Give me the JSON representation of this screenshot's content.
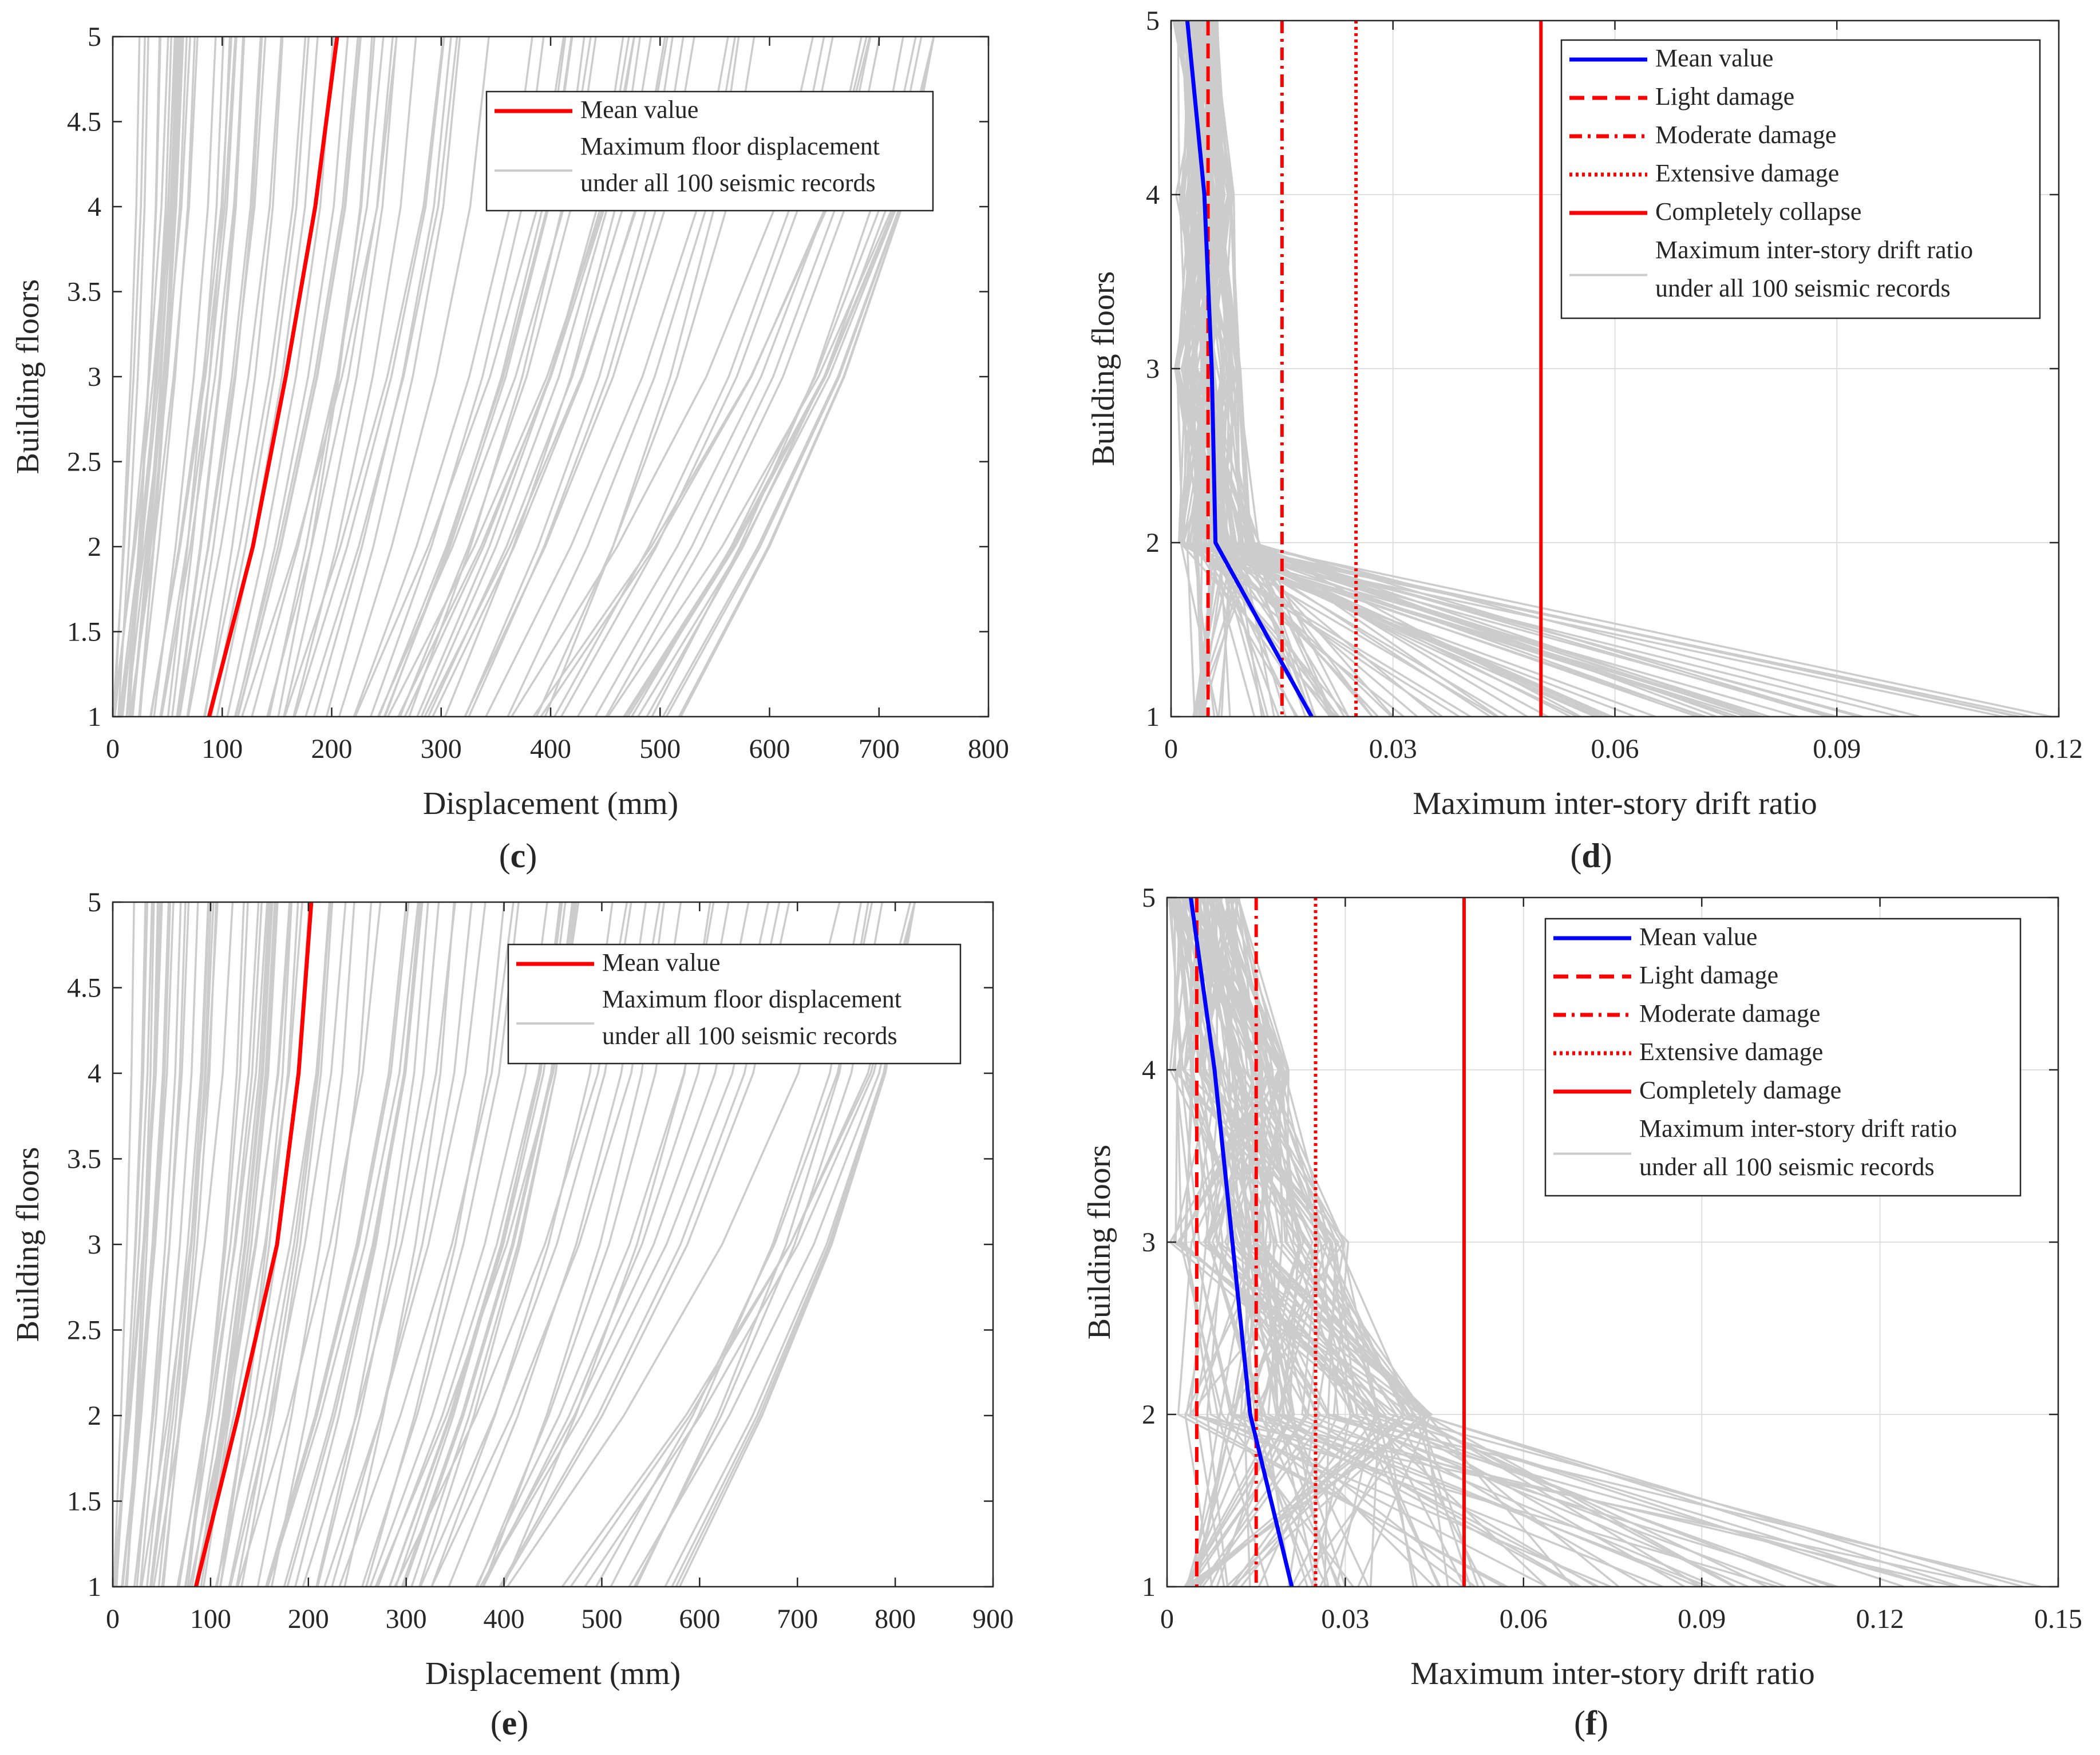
{
  "figure": {
    "colors": {
      "gray": "#cccccc",
      "red": "#ff0000",
      "blue": "#0000ff",
      "axis": "#262626",
      "grid": "#dfdfdf"
    }
  },
  "chart_data": [
    {
      "id": "c",
      "type": "line",
      "panel_label": "(c)",
      "panel_letter": "c",
      "xlabel": "Displacement (mm)",
      "ylabel": "Building floors",
      "xlim": [
        0,
        800
      ],
      "ylim": [
        1,
        5
      ],
      "xticks": [
        0,
        100,
        200,
        300,
        400,
        500,
        600,
        700,
        800
      ],
      "yticks": [
        1,
        1.5,
        2,
        2.5,
        3,
        3.5,
        4,
        4.5,
        5
      ],
      "grid": false,
      "legend_position": "top-right",
      "legend": [
        "Mean value",
        "Maximum floor displacement",
        "under all 100 seismic records"
      ],
      "floors": [
        1,
        2,
        3,
        4,
        5
      ],
      "mean": [
        88,
        128,
        158,
        185,
        205
      ],
      "record_count": 100,
      "record_base_range": [
        0,
        520
      ],
      "record_top_range": [
        0,
        750
      ]
    },
    {
      "id": "d",
      "type": "line",
      "panel_label": "(d)",
      "panel_letter": "d",
      "xlabel": "Maximum inter-story drift ratio",
      "ylabel": "Building floors",
      "xlim": [
        0,
        0.12
      ],
      "ylim": [
        1,
        5
      ],
      "xticks": [
        0,
        0.03,
        0.06,
        0.09,
        0.12
      ],
      "xtick_labels": [
        "0",
        "0.03",
        "0.06",
        "0.09",
        "0.12"
      ],
      "yticks": [
        1,
        2,
        3,
        4,
        5
      ],
      "grid": true,
      "legend_position": "top-right",
      "legend": [
        "Mean value",
        "Light damage",
        "Moderate damage",
        "Extensive damage",
        "Completely collapse",
        "Maximum inter-story drift ratio",
        "under all 100 seismic records"
      ],
      "thresholds": [
        {
          "name": "Light damage",
          "value": 0.005,
          "style": "dashed"
        },
        {
          "name": "Moderate damage",
          "value": 0.015,
          "style": "dashdot"
        },
        {
          "name": "Extensive damage",
          "value": 0.025,
          "style": "dotted"
        },
        {
          "name": "Completely collapse",
          "value": 0.05,
          "style": "solid"
        }
      ],
      "floors": [
        1,
        2,
        3,
        4,
        5
      ],
      "mean": [
        0.019,
        0.006,
        0.0055,
        0.0045,
        0.0022
      ],
      "record_count": 100,
      "record_base_max": 0.12
    },
    {
      "id": "e",
      "type": "line",
      "panel_label": "(e)",
      "panel_letter": "e",
      "xlabel": "Displacement (mm)",
      "ylabel": "Building floors",
      "xlim": [
        0,
        900
      ],
      "ylim": [
        1,
        5
      ],
      "xticks": [
        0,
        100,
        200,
        300,
        400,
        500,
        600,
        700,
        800,
        900
      ],
      "yticks": [
        1,
        1.5,
        2,
        2.5,
        3,
        3.5,
        4,
        4.5,
        5
      ],
      "grid": false,
      "legend_position": "top-right",
      "legend": [
        "Mean value",
        "Maximum floor displacement",
        "under all 100 seismic records"
      ],
      "floors": [
        1,
        2,
        3,
        4,
        5
      ],
      "mean": [
        85,
        128,
        168,
        190,
        203
      ],
      "record_count": 100,
      "record_base_range": [
        0,
        580
      ],
      "record_top_range": [
        0,
        820
      ]
    },
    {
      "id": "f",
      "type": "line",
      "panel_label": "(f)",
      "panel_letter": "f",
      "xlabel": "Maximum inter-story drift ratio",
      "ylabel": "Building floors",
      "xlim": [
        0,
        0.15
      ],
      "ylim": [
        1,
        5
      ],
      "xticks": [
        0,
        0.03,
        0.06,
        0.09,
        0.12,
        0.15
      ],
      "xtick_labels": [
        "0",
        "0.03",
        "0.06",
        "0.09",
        "0.12",
        "0.15"
      ],
      "yticks": [
        1,
        2,
        3,
        4,
        5
      ],
      "grid": true,
      "legend_position": "top-right",
      "legend": [
        "Mean value",
        "Light damage",
        "Moderate damage",
        "Extensive damage",
        "Completely damage",
        "Maximum inter-story drift ratio",
        "under all 100 seismic records"
      ],
      "thresholds": [
        {
          "name": "Light damage",
          "value": 0.005,
          "style": "dashed"
        },
        {
          "name": "Moderate damage",
          "value": 0.015,
          "style": "dashdot"
        },
        {
          "name": "Extensive damage",
          "value": 0.025,
          "style": "dotted"
        },
        {
          "name": "Completely damage",
          "value": 0.05,
          "style": "solid"
        }
      ],
      "floors": [
        1,
        2,
        3,
        4,
        5
      ],
      "mean": [
        0.021,
        0.014,
        0.011,
        0.008,
        0.004
      ],
      "record_count": 100,
      "record_base_max": 0.147
    }
  ]
}
